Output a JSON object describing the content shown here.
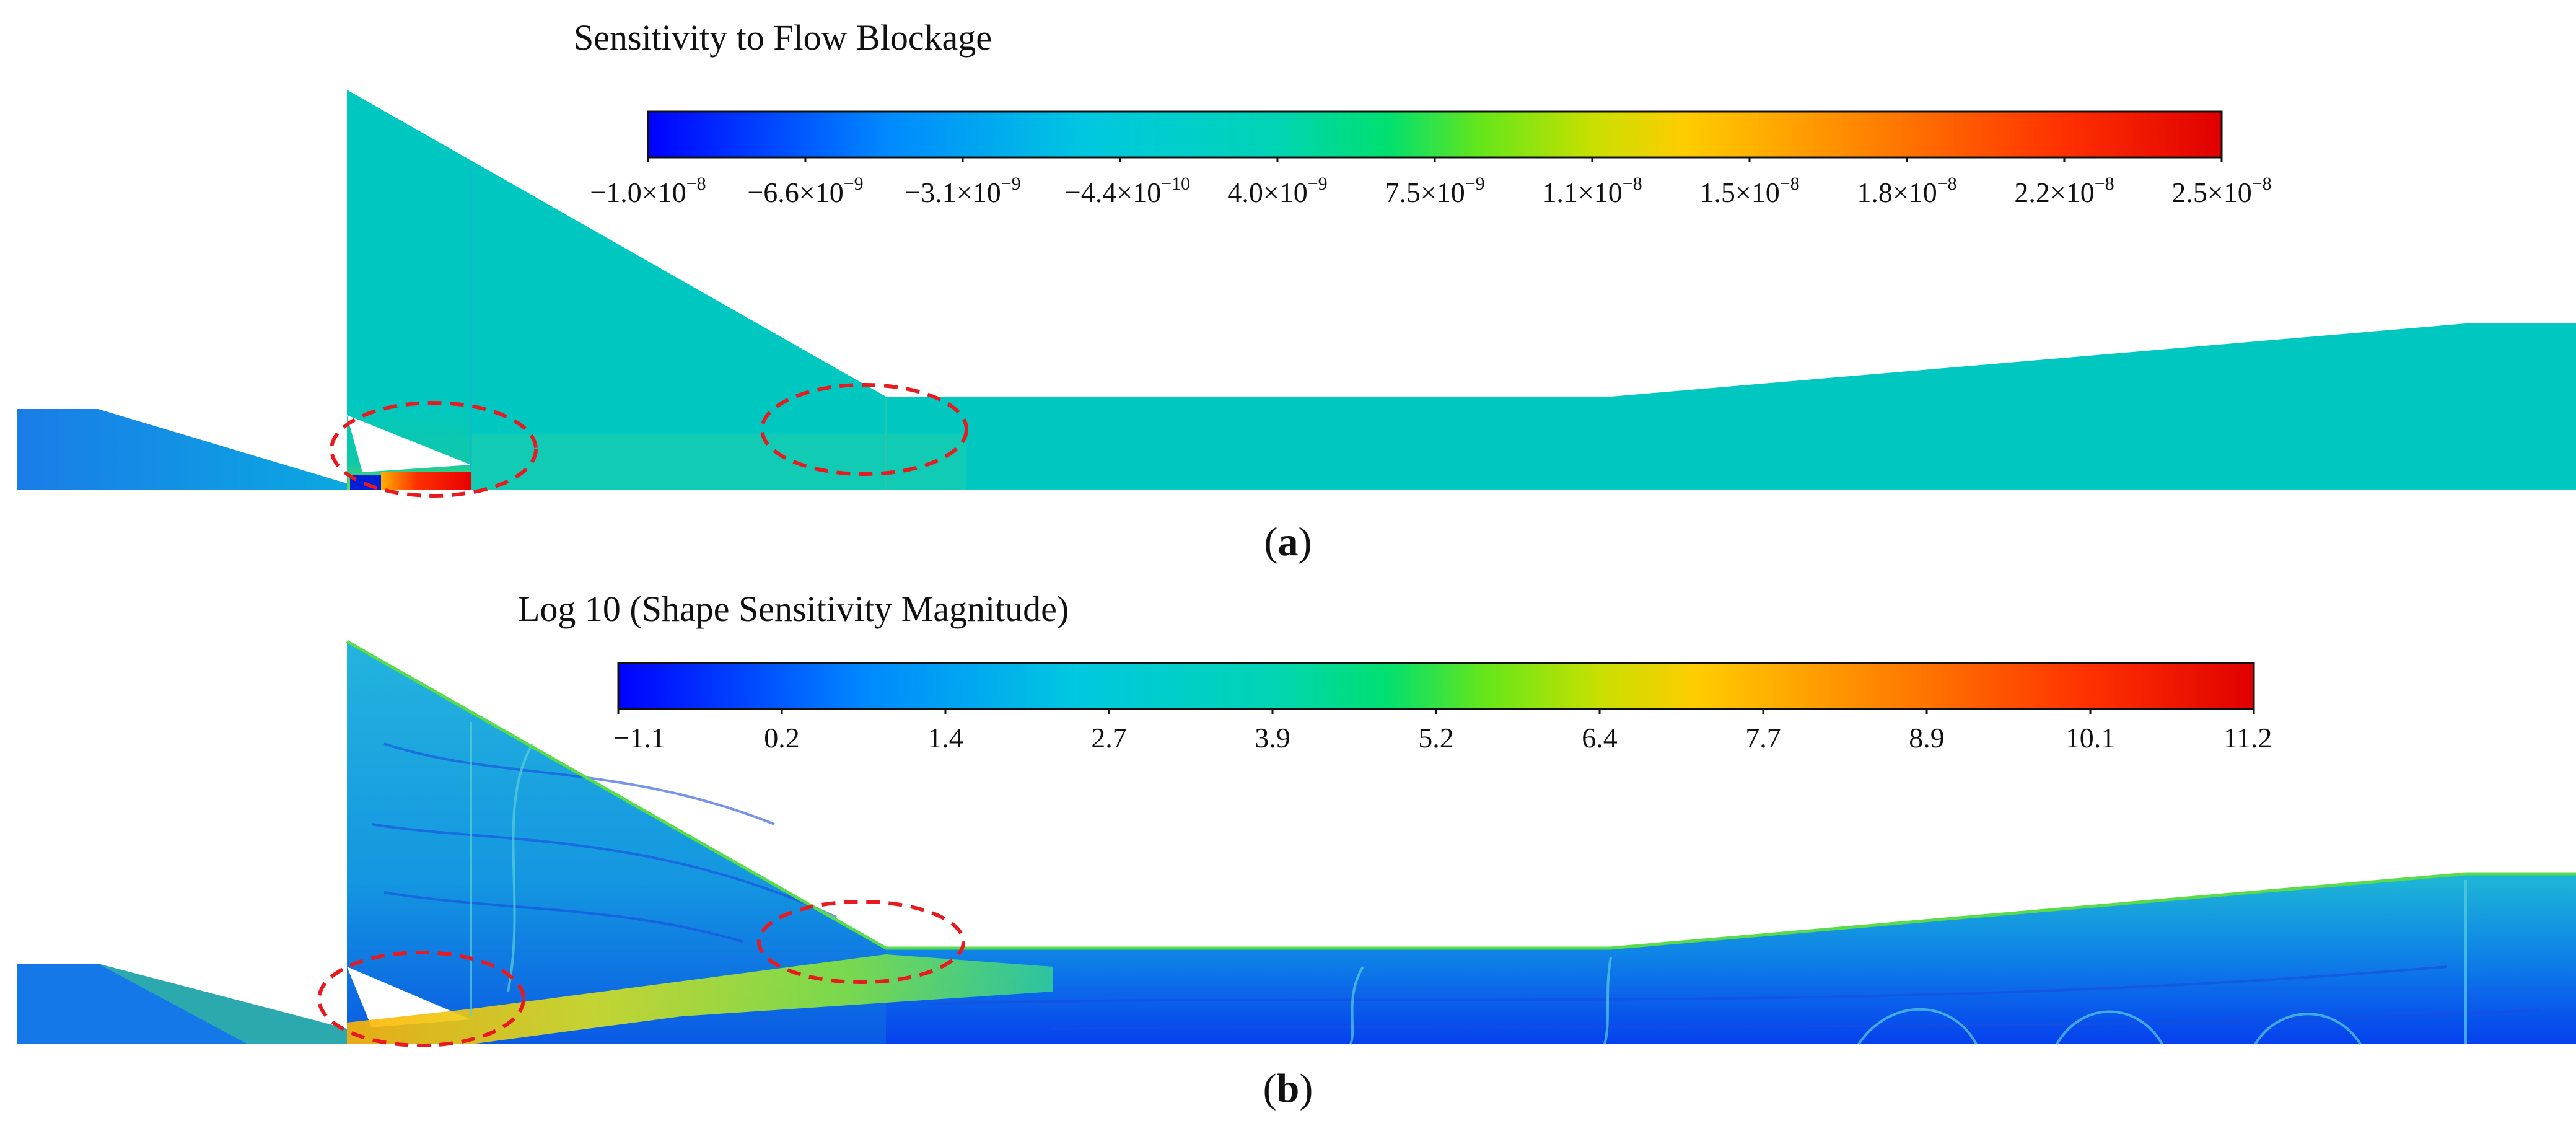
{
  "panel_a": {
    "title": "Sensitivity to Flow Blockage",
    "label_open": "(",
    "label_letter": "a",
    "label_close": ")",
    "ticks": [
      {
        "mantissa": "−1.0×10",
        "exp": "−8"
      },
      {
        "mantissa": "−6.6×10",
        "exp": "−9"
      },
      {
        "mantissa": "−3.1×10",
        "exp": "−9"
      },
      {
        "mantissa": "−4.4×10",
        "exp": "−10"
      },
      {
        "mantissa": "4.0×10",
        "exp": "−9"
      },
      {
        "mantissa": "7.5×10",
        "exp": "−9"
      },
      {
        "mantissa": "1.1×10",
        "exp": "−8"
      },
      {
        "mantissa": "1.5×10",
        "exp": "−8"
      },
      {
        "mantissa": "1.8×10",
        "exp": "−8"
      },
      {
        "mantissa": "2.2×10",
        "exp": "−8"
      },
      {
        "mantissa": "2.5×10",
        "exp": "−8"
      }
    ]
  },
  "panel_b": {
    "title": "Log 10 (Shape Sensitivity Magnitude)",
    "label_open": "(",
    "label_letter": "b",
    "label_close": ")",
    "ticks": [
      "−1.1",
      "0.2",
      "1.4",
      "2.7",
      "3.9",
      "5.2",
      "6.4",
      "7.7",
      "8.9",
      "10.1",
      "11.2"
    ]
  },
  "colors": {
    "jet_stops": [
      "#0000ff",
      "#0088ff",
      "#00c8e0",
      "#00d4b4",
      "#00e070",
      "#66e61a",
      "#c8e000",
      "#ffcc00",
      "#ff8000",
      "#ff3000",
      "#e00000"
    ],
    "field_a": "#00c8c0",
    "field_b": "#1ca4dc",
    "highlight_circle": "#e8191f"
  }
}
